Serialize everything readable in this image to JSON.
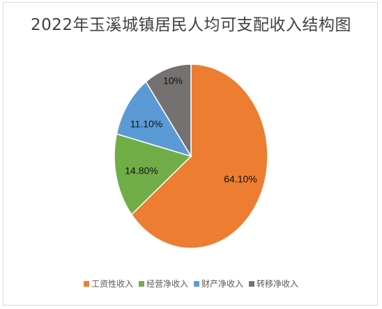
{
  "chart_data": {
    "type": "pie",
    "title": "2022年玉溪城镇居民人均可支配收入结构图",
    "slices": [
      {
        "label": "工资性收入",
        "value": 64.1,
        "display": "64.10%",
        "color": "#ED7D31"
      },
      {
        "label": "经营净收入",
        "value": 14.8,
        "display": "14.80%",
        "color": "#70AD47"
      },
      {
        "label": "财产净收入",
        "value": 11.1,
        "display": "11.10%",
        "color": "#5B9BD5"
      },
      {
        "label": "转移净收入",
        "value": 10.0,
        "display": "10%",
        "color": "#757171"
      }
    ],
    "legend_position": "bottom"
  }
}
